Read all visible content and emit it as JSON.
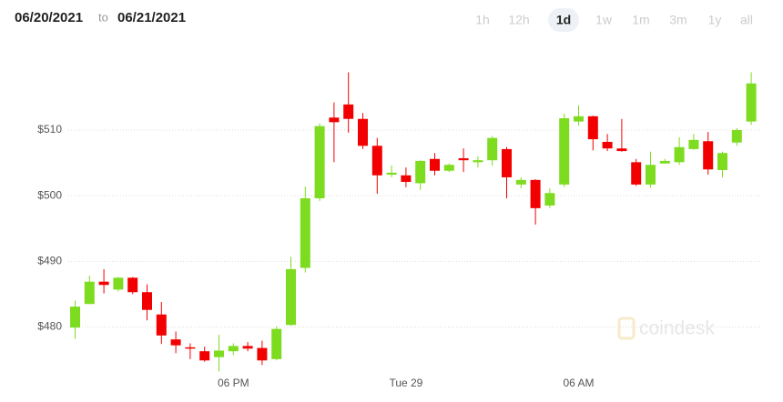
{
  "header": {
    "start": "06/20/2021",
    "separator": "to",
    "end": "06/21/2021",
    "buttons": [
      "1h",
      "12h",
      "1d",
      "1w",
      "1m",
      "3m",
      "1y",
      "all"
    ],
    "selected_button": "1d"
  },
  "watermark": "coindesk",
  "chart_data": {
    "type": "candlestick",
    "categories": [
      null,
      null,
      null,
      null,
      null,
      null,
      null,
      null,
      null,
      null,
      null,
      "06 PM",
      null,
      null,
      null,
      null,
      null,
      null,
      null,
      null,
      null,
      null,
      null,
      "Tue 29",
      null,
      null,
      null,
      null,
      null,
      null,
      null,
      null,
      null,
      null,
      null,
      "06 AM",
      null,
      null,
      null,
      null,
      null,
      null,
      null,
      null,
      null,
      null,
      null,
      null
    ],
    "open": [
      479.9,
      483.5,
      486.9,
      485.7,
      487.5,
      485.3,
      481.9,
      478.1,
      476.9,
      476.3,
      475.4,
      476.3,
      477.1,
      476.8,
      475.1,
      480.3,
      489.0,
      499.6,
      511.9,
      513.9,
      511.7,
      507.6,
      503.2,
      503.1,
      501.9,
      505.6,
      503.8,
      505.7,
      505.1,
      505.4,
      507.1,
      501.7,
      502.4,
      498.5,
      501.7,
      511.3,
      512.1,
      508.2,
      507.2,
      505.1,
      501.7,
      504.9,
      505.1,
      507.1,
      508.3,
      503.9,
      508.1,
      511.3
    ],
    "high": [
      484.0,
      487.8,
      488.8,
      487.6,
      487.6,
      486.5,
      483.8,
      479.3,
      477.5,
      477.0,
      478.8,
      477.5,
      477.7,
      477.9,
      480.1,
      490.7,
      501.4,
      511.0,
      514.2,
      518.8,
      512.6,
      508.8,
      504.6,
      504.3,
      505.4,
      506.5,
      504.9,
      507.2,
      506.0,
      509.1,
      507.4,
      502.8,
      502.5,
      501.1,
      512.5,
      513.8,
      512.2,
      509.4,
      511.7,
      505.6,
      506.7,
      505.6,
      508.9,
      509.4,
      509.7,
      506.7,
      510.3,
      518.8
    ],
    "low": [
      478.2,
      483.5,
      485.1,
      485.4,
      485.0,
      481.0,
      477.4,
      476.0,
      475.1,
      474.7,
      473.2,
      475.7,
      476.3,
      474.2,
      474.9,
      480.2,
      488.3,
      499.2,
      505.1,
      509.6,
      507.1,
      500.3,
      502.8,
      501.3,
      500.9,
      503.1,
      503.6,
      503.6,
      504.3,
      504.6,
      499.6,
      501.1,
      495.6,
      498.1,
      501.3,
      510.7,
      506.9,
      506.8,
      506.7,
      501.5,
      501.2,
      505.0,
      504.7,
      507.0,
      503.2,
      502.8,
      507.6,
      510.8
    ],
    "close": [
      483.1,
      486.9,
      486.4,
      487.5,
      485.3,
      482.6,
      478.7,
      477.2,
      476.7,
      474.9,
      476.4,
      477.1,
      476.7,
      474.9,
      479.7,
      488.8,
      499.6,
      510.6,
      511.2,
      511.7,
      507.6,
      503.1,
      503.5,
      502.1,
      505.3,
      503.8,
      504.7,
      505.4,
      505.4,
      508.8,
      502.8,
      502.4,
      498.1,
      500.4,
      511.8,
      512.1,
      508.6,
      507.2,
      506.8,
      501.7,
      504.7,
      505.3,
      507.4,
      508.5,
      504.0,
      506.5,
      510.0,
      517.1
    ],
    "up_color": "#7ddc1f",
    "down_color": "#f20000",
    "ylim": [
      473,
      521.5
    ],
    "yticks": [
      {
        "value": 480,
        "label": "$480"
      },
      {
        "value": 490,
        "label": "$490"
      },
      {
        "value": 500,
        "label": "$500"
      },
      {
        "value": 510,
        "label": "$510"
      }
    ],
    "grid": true
  }
}
